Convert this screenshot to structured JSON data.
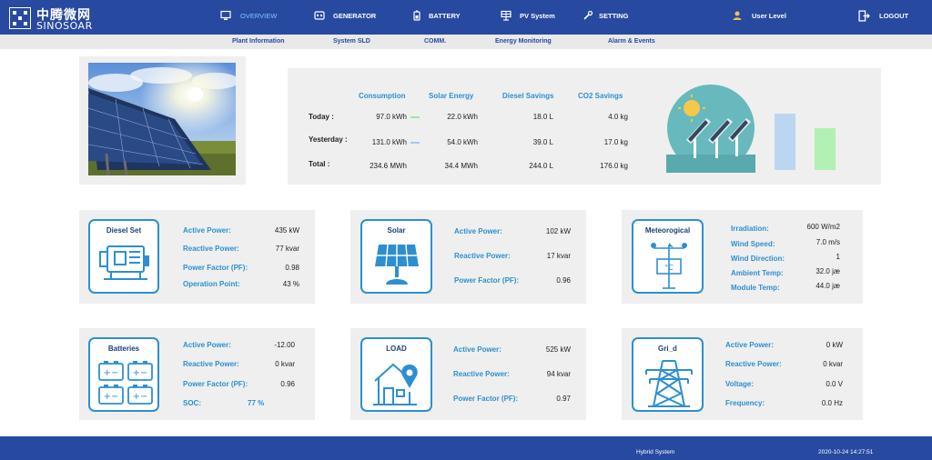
{
  "brand": {
    "name_cn": "中腾微网",
    "name_en": "SINOSOAR"
  },
  "nav": {
    "overview": "OVERVIEW",
    "generator": "GENERATOR",
    "battery": "BATTERY",
    "pv": "PV System",
    "setting": "SETTING",
    "user": "User Level",
    "logout": "LOGOUT"
  },
  "subnav": [
    "Plant Information",
    "System SLD",
    "COMM.",
    "Energy Monitoring",
    "Alarm & Events"
  ],
  "summary": {
    "headers": [
      "Consumption",
      "Solar Energy",
      "Diesel Savings",
      "CO2 Savings"
    ],
    "rows": [
      {
        "label": "Today :",
        "values": [
          "97.0 kWh",
          "22.0 kWh",
          "18.0 L",
          "4.0 kg"
        ]
      },
      {
        "label": "Yesterday :",
        "values": [
          "131.0 kWh",
          "54.0 kWh",
          "39.0 L",
          "17.0 kg"
        ]
      },
      {
        "label": "Total :",
        "values": [
          "234.6 MWh",
          "34.4 MWh",
          "244.0 L",
          "176.0 kg"
        ]
      }
    ],
    "legend_colors": {
      "today": "#9be89b",
      "yesterday": "#a9c8ea"
    },
    "bar_colors": {
      "blue": "#bcd6f2",
      "green": "#b3f0b3"
    }
  },
  "diesel": {
    "title": "Diesel Set",
    "rows": [
      {
        "label": "Active Power:",
        "value": "435 kW"
      },
      {
        "label": "Reactive Power:",
        "value": "77 kvar"
      },
      {
        "label": "Power Factor (PF):",
        "value": "0.98"
      },
      {
        "label": "Operation Point:",
        "value": "43 %"
      }
    ]
  },
  "solar": {
    "title": "Solar",
    "rows": [
      {
        "label": "Active Power:",
        "value": "102 kW"
      },
      {
        "label": "Reactive Power:",
        "value": "17 kvar"
      },
      {
        "label": "Power Factor (PF):",
        "value": "0.96"
      }
    ]
  },
  "meteo": {
    "title": "Meteorogical",
    "rows": [
      {
        "label": "Irradiation:",
        "value": "600 W/m2"
      },
      {
        "label": "Wind Speed:",
        "value": "7.0 m/s"
      },
      {
        "label": "Wind Direction:",
        "value": "1"
      },
      {
        "label": "Ambient Temp:",
        "value": "32.0 jæ"
      },
      {
        "label": "Module Temp:",
        "value": "44.0 jæ"
      }
    ]
  },
  "batteries": {
    "title": "Batteries",
    "rows": [
      {
        "label": "Active Power:",
        "value": "-12.00"
      },
      {
        "label": "Reactive Power:",
        "value": "0 kvar"
      },
      {
        "label": "Power Factor (PF):",
        "value": "0.96"
      },
      {
        "label": "SOC:",
        "value": "77 %"
      }
    ]
  },
  "load": {
    "title": "LOAD",
    "rows": [
      {
        "label": "Active Power:",
        "value": "525 kW"
      },
      {
        "label": "Reactive Power:",
        "value": "94 kvar"
      },
      {
        "label": "Power Factor (PF):",
        "value": "0.97"
      }
    ]
  },
  "grid": {
    "title": "Gri_d",
    "rows": [
      {
        "label": "Active Power:",
        "value": "0 kW"
      },
      {
        "label": "Reactive Power:",
        "value": "0 kvar"
      },
      {
        "label": "Voltage:",
        "value": "0.0 V"
      },
      {
        "label": "Frequency:",
        "value": "0.0 Hz"
      }
    ]
  },
  "footer": {
    "system": "Hybrid System",
    "datetime": "2020-10-24 14:27:51"
  },
  "colors": {
    "header": "#2749a0",
    "accent": "#2d8fd0",
    "panel": "#efefef"
  }
}
